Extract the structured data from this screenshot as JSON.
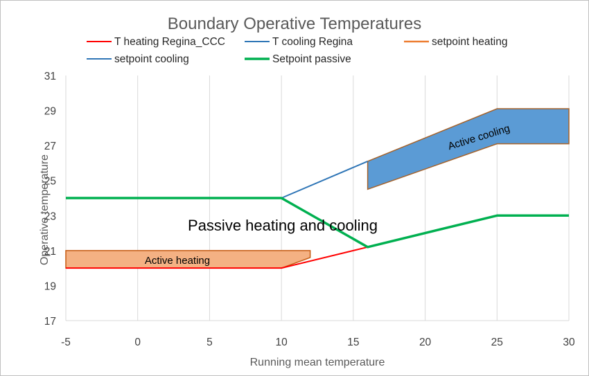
{
  "chart_data": {
    "type": "line",
    "title": "Boundary Operative Temperatures",
    "xlabel": "Running mean temperature",
    "ylabel": "Operative temperature",
    "xlim": [
      -5,
      30
    ],
    "ylim": [
      17,
      31
    ],
    "x_ticks": [
      -5,
      0,
      5,
      10,
      15,
      20,
      25,
      30
    ],
    "y_ticks": [
      17,
      19,
      21,
      23,
      25,
      27,
      29,
      31
    ],
    "grid": "vertical-only",
    "legend_position": "top",
    "series": [
      {
        "name": "T heating Regina_CCC",
        "color": "#ff0000",
        "x": [
          -5,
          10,
          16
        ],
        "y": [
          20,
          20,
          21.2
        ]
      },
      {
        "name": "T cooling Regina",
        "color": "#2e75b6",
        "x": [
          10,
          16
        ],
        "y": [
          24,
          26.1
        ]
      },
      {
        "name": "setpoint heating",
        "color": "#ed7d31",
        "x": [
          -5,
          12,
          12,
          -5
        ],
        "y": [
          21,
          21,
          20,
          20
        ]
      },
      {
        "name": "setpoint cooling",
        "color": "#2e75b6",
        "x": [
          16,
          25,
          30,
          30,
          25,
          16
        ],
        "y": [
          26.1,
          29.1,
          29.1,
          27.1,
          27.1,
          24.5
        ]
      },
      {
        "name": "Setpoint passive",
        "color": "#00b050",
        "x": [
          -5,
          10,
          16,
          25,
          30
        ],
        "y": [
          24,
          24,
          21.2,
          23,
          23
        ]
      }
    ],
    "regions": [
      {
        "label": "Active heating",
        "fill": "#f4b183",
        "stroke": "#c55a11",
        "x": [
          -5,
          12,
          12,
          10,
          -5,
          -5
        ],
        "y": [
          21,
          21,
          20.6,
          20,
          20,
          21
        ]
      },
      {
        "label": "Active cooling",
        "fill": "#5b9bd5",
        "stroke": "#a5622a",
        "x": [
          16,
          25,
          30,
          30,
          25,
          16,
          16
        ],
        "y": [
          26.1,
          29.1,
          29.1,
          27.1,
          27.1,
          24.5,
          26.1
        ]
      }
    ],
    "annotations": [
      {
        "text": "Passive heating and cooling",
        "x": 12,
        "y": 22.5
      }
    ]
  }
}
